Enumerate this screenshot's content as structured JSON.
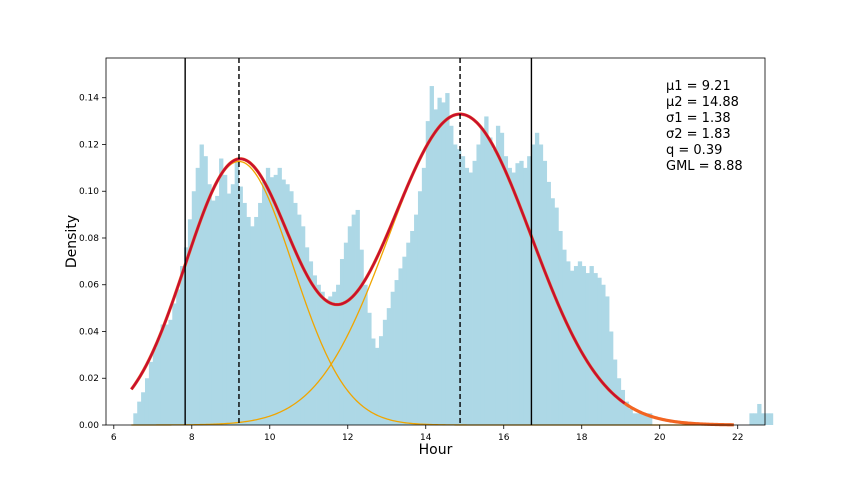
{
  "chart_data": {
    "type": "bar",
    "title": "",
    "xlabel": "Hour",
    "ylabel": "Density",
    "xlim": [
      5.8,
      22.7
    ],
    "ylim": [
      0,
      0.157
    ],
    "xticks": [
      6,
      8,
      10,
      12,
      14,
      16,
      18,
      20,
      22
    ],
    "yticks": [
      0.0,
      0.02,
      0.04,
      0.06,
      0.08,
      0.1,
      0.12,
      0.14
    ],
    "ytick_labels": [
      "0.00",
      "0.02",
      "0.04",
      "0.06",
      "0.08",
      "0.10",
      "0.12",
      "0.14"
    ],
    "grid": false,
    "legend": "none",
    "colors": {
      "histogram": "#add8e6",
      "mixture": "#c8102e",
      "mixture_fit": "#f26522",
      "component": "#f0a500",
      "vline": "#000000"
    },
    "histogram": {
      "bin_width": 0.1,
      "bin_start": 6.5,
      "values": [
        0.005,
        0.01,
        0.014,
        0.02,
        0.027,
        0.033,
        0.037,
        0.043,
        0.043,
        0.045,
        0.052,
        0.058,
        0.068,
        0.076,
        0.088,
        0.1,
        0.11,
        0.12,
        0.115,
        0.103,
        0.096,
        0.098,
        0.114,
        0.107,
        0.099,
        0.103,
        0.113,
        0.102,
        0.095,
        0.089,
        0.085,
        0.089,
        0.095,
        0.104,
        0.11,
        0.106,
        0.107,
        0.11,
        0.105,
        0.103,
        0.1,
        0.095,
        0.09,
        0.085,
        0.076,
        0.07,
        0.064,
        0.06,
        0.057,
        0.054,
        0.055,
        0.057,
        0.06,
        0.071,
        0.078,
        0.085,
        0.09,
        0.092,
        0.075,
        0.06,
        0.048,
        0.037,
        0.033,
        0.038,
        0.045,
        0.05,
        0.057,
        0.062,
        0.067,
        0.072,
        0.078,
        0.083,
        0.09,
        0.1,
        0.11,
        0.13,
        0.145,
        0.135,
        0.14,
        0.138,
        0.142,
        0.128,
        0.12,
        0.118,
        0.115,
        0.11,
        0.108,
        0.113,
        0.12,
        0.127,
        0.132,
        0.123,
        0.118,
        0.128,
        0.125,
        0.115,
        0.11,
        0.108,
        0.112,
        0.113,
        0.11,
        0.115,
        0.12,
        0.125,
        0.12,
        0.113,
        0.104,
        0.097,
        0.093,
        0.083,
        0.075,
        0.07,
        0.066,
        0.068,
        0.07,
        0.068,
        0.065,
        0.068,
        0.065,
        0.063,
        0.06,
        0.055,
        0.04,
        0.028,
        0.02,
        0.015,
        0.01,
        0.007,
        0.005,
        0.005,
        0.005,
        0.005,
        0.005,
        0,
        0,
        0,
        0,
        0,
        0,
        0,
        0,
        0,
        0,
        0,
        0,
        0,
        0,
        0,
        0,
        0,
        0,
        0,
        0,
        0,
        0,
        0,
        0,
        0,
        0.005,
        0.005,
        0.009,
        0.005,
        0.005,
        0.005
      ]
    },
    "mixture": {
      "mu1": 9.21,
      "mu2": 14.88,
      "sigma1": 1.38,
      "sigma2": 1.83,
      "q": 0.39,
      "x_range": [
        6.45,
        19.1
      ]
    },
    "vlines": [
      {
        "x": 7.83,
        "style": "solid"
      },
      {
        "x": 9.21,
        "style": "dashed"
      },
      {
        "x": 14.88,
        "style": "dashed"
      },
      {
        "x": 16.71,
        "style": "solid"
      }
    ],
    "annotation": {
      "lines": [
        "μ1 = 9.21",
        "μ2 = 14.88",
        "σ1 = 1.38",
        "σ2 = 1.83",
        "q = 0.39",
        "GML = 8.88"
      ]
    }
  }
}
